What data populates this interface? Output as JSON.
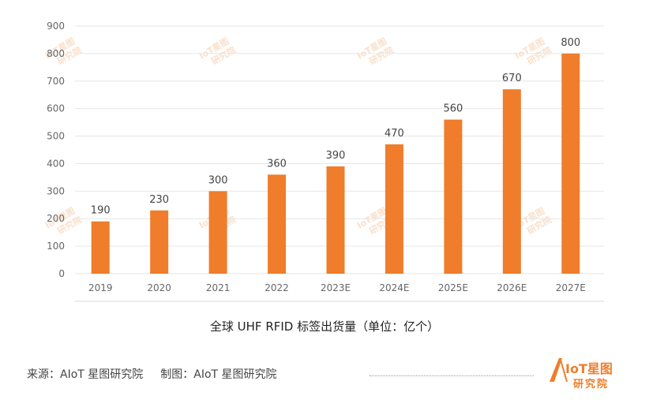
{
  "chart_data": {
    "type": "bar",
    "title": "全球 UHF RFID 标签出货量（单位：亿个）",
    "categories": [
      "2019",
      "2020",
      "2021",
      "2022",
      "2023E",
      "2024E",
      "2025E",
      "2026E",
      "2027E"
    ],
    "values": [
      190,
      230,
      300,
      360,
      390,
      470,
      560,
      670,
      800
    ],
    "ylim": [
      0,
      900
    ],
    "yticks": [
      0,
      100,
      200,
      300,
      400,
      500,
      600,
      700,
      800,
      900
    ],
    "grid": true,
    "bar_color": "#ef7d2b"
  },
  "footer": {
    "source": "来源：AIoT 星图研究院",
    "made_by": "制图：AIoT 星图研究院"
  },
  "logo": {
    "text": "IoT星图",
    "sub": "研究院",
    "color": "#ef7d2b"
  },
  "watermark": {
    "text_top": "IoT星图",
    "text_bottom": "研究院"
  }
}
